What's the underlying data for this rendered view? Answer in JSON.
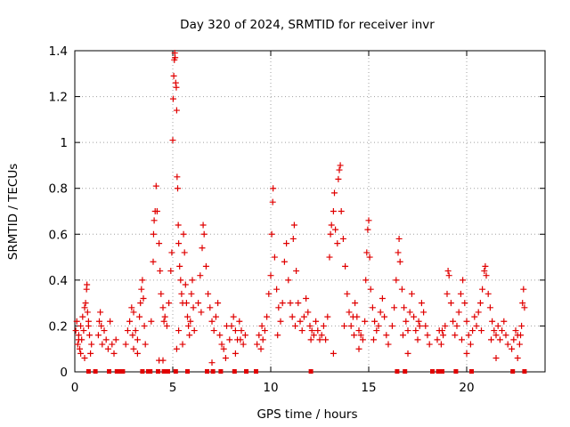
{
  "chart_data": {
    "type": "scatter",
    "title": "Day 320 of 2024, SRMTID for receiver invr",
    "xlabel": "GPS time / hours",
    "ylabel": "SRMTID / TECUs",
    "xlim": [
      0,
      24
    ],
    "ylim": [
      0,
      1.4
    ],
    "x_ticks": [
      0,
      5,
      10,
      15,
      20
    ],
    "x_tick_labels": [
      "0",
      "5",
      "10",
      "15",
      "20"
    ],
    "y_ticks": [
      0,
      0.2,
      0.4,
      0.6,
      0.8,
      1,
      1.2,
      1.4
    ],
    "y_tick_labels": [
      "0",
      "0.2",
      "0.4",
      "0.6",
      "0.8",
      "1",
      "1.2",
      "1.4"
    ],
    "grid": true,
    "marker": "+",
    "series": [
      {
        "name": "SRMTID",
        "color": "#e00000",
        "points": [
          [
            0.05,
            0.18
          ],
          [
            0.1,
            0.22
          ],
          [
            0.15,
            0.12
          ],
          [
            0.2,
            0.16
          ],
          [
            0.25,
            0.1
          ],
          [
            0.3,
            0.2
          ],
          [
            0.35,
            0.14
          ],
          [
            0.4,
            0.24
          ],
          [
            0.45,
            0.18
          ],
          [
            0.5,
            0.28
          ],
          [
            0.55,
            0.3
          ],
          [
            0.6,
            0.36
          ],
          [
            0.62,
            0.38
          ],
          [
            0.65,
            0.26
          ],
          [
            0.7,
            0.22
          ],
          [
            0.75,
            0.16
          ],
          [
            0.8,
            0.08
          ],
          [
            0.85,
            0.12
          ],
          [
            0.3,
            0.08
          ],
          [
            0.5,
            0.06
          ],
          [
            1.2,
            0.16
          ],
          [
            1.3,
            0.26
          ],
          [
            1.35,
            0.2
          ],
          [
            1.4,
            0.12
          ],
          [
            1.5,
            0.18
          ],
          [
            1.6,
            0.14
          ],
          [
            1.7,
            0.1
          ],
          [
            1.8,
            0.22
          ],
          [
            1.9,
            0.12
          ],
          [
            2.0,
            0.08
          ],
          [
            2.1,
            0.14
          ],
          [
            2.6,
            0.12
          ],
          [
            2.7,
            0.18
          ],
          [
            2.8,
            0.22
          ],
          [
            2.9,
            0.28
          ],
          [
            3.0,
            0.26
          ],
          [
            3.1,
            0.18
          ],
          [
            3.2,
            0.14
          ],
          [
            3.3,
            0.24
          ],
          [
            3.4,
            0.36
          ],
          [
            3.45,
            0.4
          ],
          [
            3.5,
            0.32
          ],
          [
            3.55,
            0.2
          ],
          [
            3.6,
            0.12
          ],
          [
            3.2,
            0.08
          ],
          [
            3.0,
            0.1
          ],
          [
            3.9,
            0.22
          ],
          [
            4.0,
            0.48
          ],
          [
            4.02,
            0.6
          ],
          [
            4.05,
            0.66
          ],
          [
            4.1,
            0.7
          ],
          [
            4.15,
            0.81
          ],
          [
            4.2,
            0.7
          ],
          [
            4.3,
            0.56
          ],
          [
            4.35,
            0.44
          ],
          [
            4.4,
            0.34
          ],
          [
            4.5,
            0.28
          ],
          [
            4.6,
            0.24
          ],
          [
            4.7,
            0.2
          ],
          [
            4.8,
            0.3
          ],
          [
            4.3,
            0.05
          ],
          [
            4.5,
            0.05
          ],
          [
            4.9,
            0.44
          ],
          [
            4.95,
            0.52
          ],
          [
            5.0,
            1.01
          ],
          [
            5.02,
            1.19
          ],
          [
            5.05,
            1.29
          ],
          [
            5.08,
            1.36
          ],
          [
            5.1,
            1.39
          ],
          [
            5.12,
            1.37
          ],
          [
            5.15,
            1.26
          ],
          [
            5.18,
            1.24
          ],
          [
            5.2,
            1.14
          ],
          [
            5.22,
            0.85
          ],
          [
            5.25,
            0.8
          ],
          [
            5.28,
            0.64
          ],
          [
            5.3,
            0.56
          ],
          [
            5.35,
            0.46
          ],
          [
            5.4,
            0.4
          ],
          [
            5.45,
            0.34
          ],
          [
            5.5,
            0.3
          ],
          [
            5.55,
            0.6
          ],
          [
            5.6,
            0.52
          ],
          [
            5.65,
            0.38
          ],
          [
            5.7,
            0.3
          ],
          [
            5.75,
            0.24
          ],
          [
            5.8,
            0.2
          ],
          [
            5.85,
            0.16
          ],
          [
            5.9,
            0.22
          ],
          [
            5.95,
            0.34
          ],
          [
            6.0,
            0.4
          ],
          [
            6.05,
            0.28
          ],
          [
            6.1,
            0.18
          ],
          [
            5.2,
            0.1
          ],
          [
            5.5,
            0.12
          ],
          [
            6.3,
            0.3
          ],
          [
            6.4,
            0.42
          ],
          [
            6.5,
            0.54
          ],
          [
            6.55,
            0.64
          ],
          [
            6.6,
            0.6
          ],
          [
            6.7,
            0.46
          ],
          [
            6.8,
            0.34
          ],
          [
            6.9,
            0.28
          ],
          [
            7.0,
            0.22
          ],
          [
            7.1,
            0.18
          ],
          [
            7.2,
            0.24
          ],
          [
            7.3,
            0.3
          ],
          [
            7.4,
            0.16
          ],
          [
            7.5,
            0.12
          ],
          [
            7.6,
            0.1
          ],
          [
            7.7,
            0.06
          ],
          [
            7.0,
            0.04
          ],
          [
            7.9,
            0.14
          ],
          [
            8.0,
            0.2
          ],
          [
            8.1,
            0.24
          ],
          [
            8.2,
            0.18
          ],
          [
            8.3,
            0.14
          ],
          [
            8.4,
            0.22
          ],
          [
            8.5,
            0.18
          ],
          [
            8.6,
            0.12
          ],
          [
            8.7,
            0.16
          ],
          [
            8.2,
            0.08
          ],
          [
            9.3,
            0.12
          ],
          [
            9.4,
            0.16
          ],
          [
            9.5,
            0.1
          ],
          [
            9.6,
            0.14
          ],
          [
            9.7,
            0.18
          ],
          [
            9.8,
            0.24
          ],
          [
            9.9,
            0.34
          ],
          [
            10.0,
            0.42
          ],
          [
            10.05,
            0.6
          ],
          [
            10.1,
            0.74
          ],
          [
            10.12,
            0.8
          ],
          [
            10.2,
            0.5
          ],
          [
            10.3,
            0.36
          ],
          [
            10.4,
            0.28
          ],
          [
            10.5,
            0.22
          ],
          [
            10.6,
            0.3
          ],
          [
            10.7,
            0.48
          ],
          [
            10.8,
            0.56
          ],
          [
            10.9,
            0.4
          ],
          [
            11.0,
            0.3
          ],
          [
            11.1,
            0.24
          ],
          [
            11.15,
            0.58
          ],
          [
            11.2,
            0.64
          ],
          [
            11.3,
            0.44
          ],
          [
            11.4,
            0.3
          ],
          [
            11.5,
            0.22
          ],
          [
            11.6,
            0.18
          ],
          [
            11.7,
            0.24
          ],
          [
            11.8,
            0.32
          ],
          [
            11.9,
            0.26
          ],
          [
            12.0,
            0.2
          ],
          [
            12.1,
            0.18
          ],
          [
            12.2,
            0.16
          ],
          [
            12.3,
            0.22
          ],
          [
            12.4,
            0.18
          ],
          [
            12.5,
            0.14
          ],
          [
            12.6,
            0.16
          ],
          [
            12.7,
            0.2
          ],
          [
            12.8,
            0.14
          ],
          [
            12.9,
            0.24
          ],
          [
            13.0,
            0.5
          ],
          [
            13.05,
            0.6
          ],
          [
            13.1,
            0.64
          ],
          [
            13.2,
            0.7
          ],
          [
            13.25,
            0.78
          ],
          [
            13.3,
            0.62
          ],
          [
            13.4,
            0.56
          ],
          [
            13.45,
            0.84
          ],
          [
            13.5,
            0.88
          ],
          [
            13.55,
            0.9
          ],
          [
            13.6,
            0.7
          ],
          [
            13.7,
            0.58
          ],
          [
            13.8,
            0.46
          ],
          [
            13.9,
            0.34
          ],
          [
            14.0,
            0.26
          ],
          [
            14.1,
            0.2
          ],
          [
            14.2,
            0.24
          ],
          [
            14.3,
            0.3
          ],
          [
            14.4,
            0.24
          ],
          [
            14.5,
            0.18
          ],
          [
            14.6,
            0.16
          ],
          [
            14.7,
            0.14
          ],
          [
            14.8,
            0.22
          ],
          [
            14.85,
            0.4
          ],
          [
            14.9,
            0.52
          ],
          [
            14.95,
            0.62
          ],
          [
            15.0,
            0.66
          ],
          [
            15.05,
            0.5
          ],
          [
            15.1,
            0.36
          ],
          [
            15.2,
            0.28
          ],
          [
            15.3,
            0.22
          ],
          [
            15.4,
            0.18
          ],
          [
            15.5,
            0.2
          ],
          [
            15.6,
            0.26
          ],
          [
            15.7,
            0.32
          ],
          [
            15.8,
            0.24
          ],
          [
            15.9,
            0.16
          ],
          [
            16.0,
            0.12
          ],
          [
            13.2,
            0.08
          ],
          [
            14.5,
            0.1
          ],
          [
            16.2,
            0.2
          ],
          [
            16.3,
            0.28
          ],
          [
            16.4,
            0.4
          ],
          [
            16.5,
            0.52
          ],
          [
            16.55,
            0.58
          ],
          [
            16.6,
            0.48
          ],
          [
            16.7,
            0.36
          ],
          [
            16.8,
            0.28
          ],
          [
            16.9,
            0.22
          ],
          [
            17.0,
            0.18
          ],
          [
            17.1,
            0.26
          ],
          [
            17.2,
            0.34
          ],
          [
            17.3,
            0.24
          ],
          [
            17.4,
            0.18
          ],
          [
            17.5,
            0.14
          ],
          [
            17.6,
            0.2
          ],
          [
            17.7,
            0.3
          ],
          [
            17.8,
            0.26
          ],
          [
            17.9,
            0.2
          ],
          [
            18.0,
            0.16
          ],
          [
            18.1,
            0.12
          ],
          [
            17.0,
            0.08
          ],
          [
            18.5,
            0.14
          ],
          [
            18.6,
            0.18
          ],
          [
            18.7,
            0.12
          ],
          [
            18.8,
            0.16
          ],
          [
            18.9,
            0.2
          ],
          [
            19.0,
            0.34
          ],
          [
            19.05,
            0.44
          ],
          [
            19.1,
            0.42
          ],
          [
            19.2,
            0.3
          ],
          [
            19.3,
            0.22
          ],
          [
            19.4,
            0.16
          ],
          [
            19.5,
            0.2
          ],
          [
            19.6,
            0.26
          ],
          [
            19.7,
            0.34
          ],
          [
            19.8,
            0.4
          ],
          [
            19.9,
            0.3
          ],
          [
            20.0,
            0.22
          ],
          [
            20.1,
            0.16
          ],
          [
            20.2,
            0.12
          ],
          [
            20.3,
            0.18
          ],
          [
            20.4,
            0.24
          ],
          [
            20.5,
            0.2
          ],
          [
            20.6,
            0.26
          ],
          [
            20.7,
            0.3
          ],
          [
            20.8,
            0.36
          ],
          [
            20.9,
            0.44
          ],
          [
            20.95,
            0.46
          ],
          [
            21.0,
            0.42
          ],
          [
            21.1,
            0.34
          ],
          [
            21.2,
            0.28
          ],
          [
            21.3,
            0.22
          ],
          [
            21.4,
            0.18
          ],
          [
            21.5,
            0.16
          ],
          [
            21.6,
            0.2
          ],
          [
            21.7,
            0.14
          ],
          [
            21.8,
            0.18
          ],
          [
            21.9,
            0.22
          ],
          [
            22.0,
            0.16
          ],
          [
            22.1,
            0.12
          ],
          [
            20.0,
            0.08
          ],
          [
            21.5,
            0.06
          ],
          [
            22.3,
            0.1
          ],
          [
            22.4,
            0.14
          ],
          [
            22.5,
            0.18
          ],
          [
            22.6,
            0.16
          ],
          [
            22.7,
            0.12
          ],
          [
            22.8,
            0.2
          ],
          [
            22.85,
            0.3
          ],
          [
            22.9,
            0.36
          ],
          [
            22.95,
            0.28
          ],
          [
            22.6,
            0.06
          ],
          [
            0.2,
            0.14
          ],
          [
            0.7,
            0.2
          ],
          [
            1.25,
            0.22
          ],
          [
            2.95,
            0.16
          ],
          [
            3.35,
            0.3
          ],
          [
            4.55,
            0.22
          ],
          [
            5.3,
            0.18
          ],
          [
            6.45,
            0.26
          ],
          [
            7.75,
            0.2
          ],
          [
            8.45,
            0.14
          ],
          [
            9.55,
            0.2
          ],
          [
            10.35,
            0.16
          ],
          [
            11.25,
            0.2
          ],
          [
            12.05,
            0.14
          ],
          [
            13.75,
            0.2
          ],
          [
            14.25,
            0.16
          ],
          [
            15.25,
            0.14
          ],
          [
            16.75,
            0.16
          ],
          [
            17.55,
            0.22
          ],
          [
            18.75,
            0.18
          ],
          [
            19.75,
            0.14
          ],
          [
            20.75,
            0.18
          ],
          [
            21.25,
            0.14
          ],
          [
            22.75,
            0.16
          ]
        ]
      }
    ],
    "zero_markers": [
      0.7,
      1.05,
      1.75,
      2.15,
      2.35,
      2.45,
      3.45,
      3.75,
      3.85,
      4.25,
      4.55,
      4.75,
      5.15,
      5.75,
      6.75,
      7.05,
      7.45,
      8.15,
      8.75,
      9.25,
      12.05,
      16.45,
      16.85,
      18.25,
      18.55,
      18.75,
      19.45,
      20.25,
      22.35,
      22.95
    ]
  }
}
